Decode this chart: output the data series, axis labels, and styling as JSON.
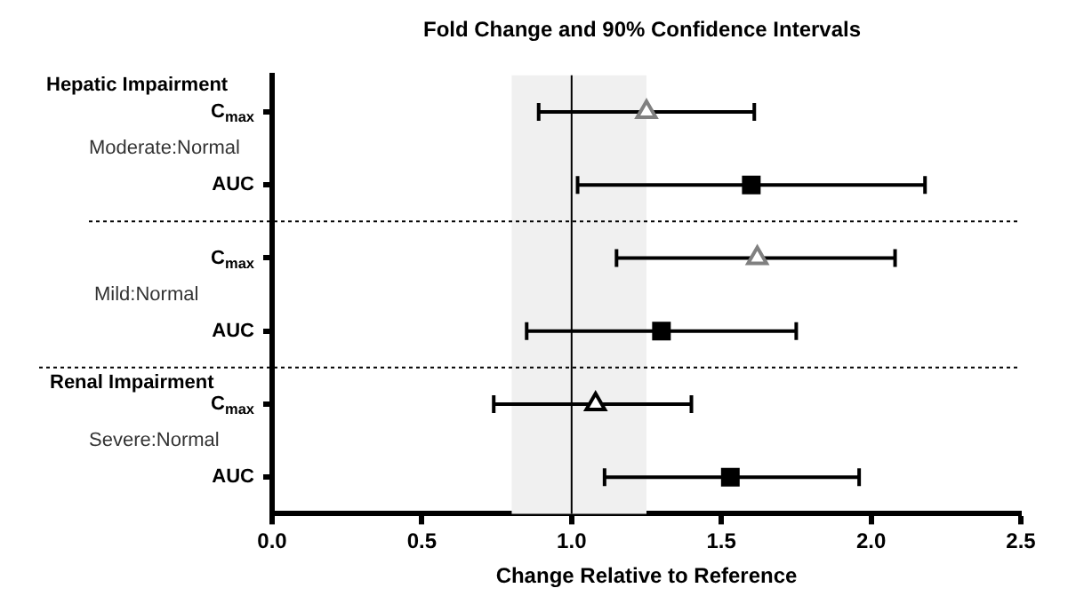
{
  "chart_data": {
    "type": "scatter",
    "orientation": "horizontal",
    "title": "Fold Change and 90% Confidence Intervals",
    "xlabel": "Change Relative to Reference",
    "categories": [
      "C$_{max}$",
      "AUC",
      "C$_{max}$",
      "AUC",
      "C$_{max}$",
      "AUC"
    ],
    "series": [
      {
        "marker": "triangle",
        "colors": [
          "#808080",
          null,
          "#808080",
          null,
          "#000000",
          null
        ],
        "values": [
          1.25,
          null,
          1.62,
          null,
          1.08,
          null
        ],
        "errors": [
          [
            0.89,
            1.61
          ],
          null,
          [
            1.15,
            2.08
          ],
          null,
          [
            0.74,
            1.4
          ],
          null
        ]
      },
      {
        "marker": "square",
        "color": "#000000",
        "values": [
          null,
          1.6,
          null,
          1.3,
          null,
          1.53
        ],
        "errors": [
          null,
          [
            1.02,
            2.18
          ],
          null,
          [
            0.85,
            1.75
          ],
          null,
          [
            1.11,
            1.96
          ]
        ]
      }
    ],
    "xlim": [
      0,
      2.5
    ],
    "xticks": [
      {
        "value": 0,
        "label": "0.0"
      },
      {
        "value": 0.5,
        "label": "0.5"
      },
      {
        "value": 1,
        "label": "1.0"
      },
      {
        "value": 1.5,
        "label": "1.5"
      },
      {
        "value": 2,
        "label": "2.0"
      },
      {
        "value": 2.5,
        "label": "2.5"
      }
    ],
    "grid": false,
    "legend": false,
    "bands": [
      {
        "axis": "x",
        "from": 0.8,
        "to": 1.25,
        "color": "#f0f0f0"
      }
    ],
    "ref_lines": [
      {
        "axis": "x",
        "value": 1.0,
        "color": "#000000",
        "line_style": "solid"
      }
    ],
    "annotations": [
      "Hepatic Impairment",
      "Moderate:Normal",
      "Mild:Normal",
      "Renal Impairment",
      "Severe:Normal"
    ]
  }
}
